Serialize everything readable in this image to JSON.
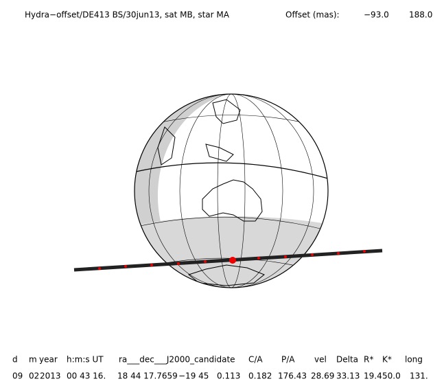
{
  "header": {
    "title": "Hydra−offset/DE413 BS/30jun13, sat MB, star MA",
    "offset_label": "Offset (mas):",
    "offset_x": "−93.0",
    "offset_y": "188.0"
  },
  "table": {
    "columns": [
      "d",
      "m",
      "year",
      "h:m:s UT",
      "ra___dec___J2000_candidate",
      "C/A",
      "P/A",
      "vel",
      "Delta",
      "R*",
      "K*",
      "long"
    ],
    "values": [
      "09",
      "02",
      "2013",
      "00 43 16.",
      "18 44 17.7659",
      "−19 45",
      "0.113",
      "0.182",
      "176.43",
      "28.69",
      "33.13",
      "19.4",
      "50.0",
      "131."
    ]
  }
}
